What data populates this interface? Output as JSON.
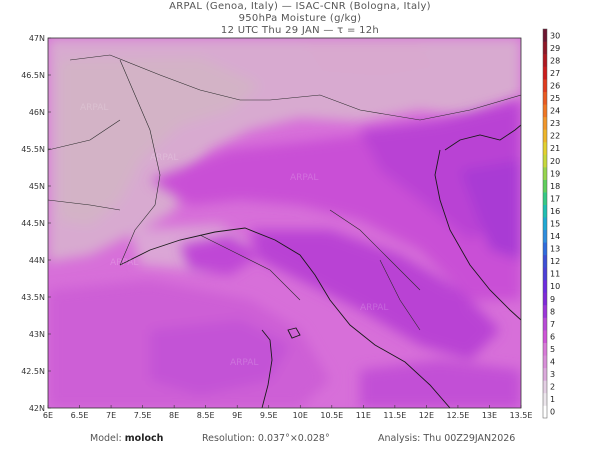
{
  "header": {
    "line1": "ARPAL (Genoa, Italy) — ISAC-CNR (Bologna, Italy)",
    "line2": "950hPa Moisture (g/kg)",
    "line3": "12 UTC Thu 29 JAN — τ = 12h"
  },
  "map": {
    "lat_ticks": [
      "47N",
      "46.5N",
      "46N",
      "45.5N",
      "45N",
      "44.5N",
      "44N",
      "43.5N",
      "43N",
      "42.5N",
      "42N"
    ],
    "lon_ticks": [
      "6E",
      "6.5E",
      "7E",
      "7.5E",
      "8E",
      "8.5E",
      "9E",
      "9.5E",
      "10E",
      "10.5E",
      "11E",
      "11.5E",
      "12E",
      "12.5E",
      "13E",
      "13.5E"
    ],
    "watermark": "ARPAL"
  },
  "colorbar": {
    "labels": [
      "0",
      "1",
      "2",
      "3",
      "4",
      "5",
      "6",
      "7",
      "8",
      "9",
      "10",
      "11",
      "12",
      "13",
      "14",
      "15",
      "16",
      "17",
      "18",
      "19",
      "20",
      "21",
      "22",
      "23",
      "24",
      "25",
      "26",
      "27",
      "28",
      "29",
      "30"
    ],
    "colors": [
      "#ffffff",
      "#ece6ec",
      "#e3cfe3",
      "#dcaadc",
      "#d98fd9",
      "#d87ad8",
      "#cf55d8",
      "#b84ad6",
      "#9c35d9",
      "#8029d9",
      "#6e2be0",
      "#4d3fd8",
      "#3d4fd6",
      "#2f6bdd",
      "#2e8dde",
      "#1fa9d4",
      "#1fbfb2",
      "#35c985",
      "#5fcf5c",
      "#97d54d",
      "#c6d93b",
      "#e3d12f",
      "#efb62a",
      "#f2962a",
      "#f07623",
      "#ea5a21",
      "#e13b1e",
      "#cc1c1c",
      "#b01820",
      "#8f1727",
      "#6d1530"
    ]
  },
  "footer": {
    "model_label": "Model:",
    "model_value": "moloch",
    "resolution_label": "Resolution:",
    "resolution_value": "0.037°×0.028°",
    "analysis_label": "Analysis:",
    "analysis_value": "Thu 00Z29JAN2026"
  }
}
